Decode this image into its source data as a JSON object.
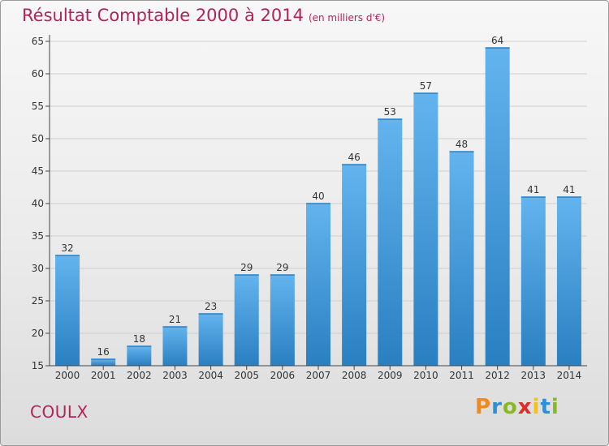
{
  "header": {
    "title": "Résultat Comptable 2000 à 2014",
    "subtitle": "(en milliers d'€)"
  },
  "footer": {
    "commune": "COULX",
    "logo_text": "Proxiti"
  },
  "colors": {
    "title": "#b0245a",
    "bar_top": "#63b4ee",
    "bar_bottom": "#2a7fc1",
    "axis": "#444444",
    "grid": "#cfcfcf",
    "logo_letters": [
      "#f08a1c",
      "#2d8fd5",
      "#8ab825",
      "#e02b2b",
      "#f2c11b",
      "#2d8fd5",
      "#8ab825"
    ]
  },
  "chart_data": {
    "type": "bar",
    "title": "Résultat Comptable 2000 à 2014",
    "subtitle": "(en milliers d'€)",
    "categories": [
      "2000",
      "2001",
      "2002",
      "2003",
      "2004",
      "2005",
      "2006",
      "2007",
      "2008",
      "2009",
      "2010",
      "2011",
      "2012",
      "2013",
      "2014"
    ],
    "values": [
      32,
      16,
      18,
      21,
      23,
      29,
      29,
      40,
      46,
      53,
      57,
      48,
      64,
      41,
      41
    ],
    "ylim": [
      15,
      65
    ],
    "yticks": [
      15,
      20,
      25,
      30,
      35,
      40,
      45,
      50,
      55,
      60,
      65
    ],
    "grid": true,
    "data_labels": true
  }
}
